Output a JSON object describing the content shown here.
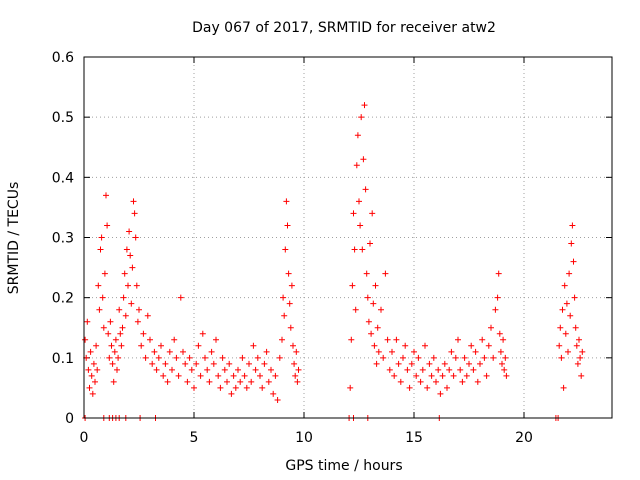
{
  "chart_data": {
    "type": "scatter",
    "title": "Day 067 of 2017, SRMTID for receiver atw2",
    "xlabel": "GPS time / hours",
    "ylabel": "SRMTID / TECUs",
    "xlim": [
      0,
      24
    ],
    "ylim": [
      0,
      0.6
    ],
    "xticks": [
      0,
      5,
      10,
      15,
      20
    ],
    "xtick_labels": [
      "0",
      "5",
      "10",
      "15",
      "20"
    ],
    "yticks": [
      0,
      0.1,
      0.2,
      0.3,
      0.4,
      0.5,
      0.6
    ],
    "ytick_labels": [
      "0",
      "0.1",
      "0.2",
      "0.3",
      "0.4",
      "0.5",
      "0.6"
    ],
    "grid": true,
    "marker": "+",
    "color": "#ff0000",
    "series": [
      {
        "name": "SRMTID",
        "points": [
          [
            0.05,
            0.13
          ],
          [
            0.1,
            0.1
          ],
          [
            0.15,
            0.16
          ],
          [
            0.2,
            0.08
          ],
          [
            0.25,
            0.05
          ],
          [
            0.3,
            0.11
          ],
          [
            0.35,
            0.07
          ],
          [
            0.4,
            0.04
          ],
          [
            0.45,
            0.09
          ],
          [
            0.5,
            0.06
          ],
          [
            0.55,
            0.12
          ],
          [
            0.6,
            0.08
          ],
          [
            0.65,
            0.22
          ],
          [
            0.7,
            0.18
          ],
          [
            0.75,
            0.28
          ],
          [
            0.8,
            0.3
          ],
          [
            0.85,
            0.2
          ],
          [
            0.9,
            0.15
          ],
          [
            0.95,
            0.24
          ],
          [
            1.0,
            0.37
          ],
          [
            1.05,
            0.32
          ],
          [
            1.1,
            0.14
          ],
          [
            1.15,
            0.1
          ],
          [
            1.2,
            0.16
          ],
          [
            1.25,
            0.12
          ],
          [
            1.3,
            0.09
          ],
          [
            1.35,
            0.06
          ],
          [
            1.4,
            0.11
          ],
          [
            1.45,
            0.13
          ],
          [
            1.5,
            0.08
          ],
          [
            1.55,
            0.1
          ],
          [
            1.6,
            0.18
          ],
          [
            1.65,
            0.14
          ],
          [
            1.7,
            0.12
          ],
          [
            1.75,
            0.15
          ],
          [
            1.8,
            0.2
          ],
          [
            1.85,
            0.24
          ],
          [
            1.9,
            0.17
          ],
          [
            1.95,
            0.28
          ],
          [
            2.0,
            0.22
          ],
          [
            2.05,
            0.31
          ],
          [
            2.1,
            0.27
          ],
          [
            2.15,
            0.19
          ],
          [
            2.2,
            0.25
          ],
          [
            2.25,
            0.36
          ],
          [
            2.3,
            0.34
          ],
          [
            2.35,
            0.3
          ],
          [
            2.4,
            0.22
          ],
          [
            2.45,
            0.16
          ],
          [
            2.5,
            0.18
          ],
          [
            2.6,
            0.12
          ],
          [
            2.7,
            0.14
          ],
          [
            2.8,
            0.1
          ],
          [
            2.9,
            0.17
          ],
          [
            3.0,
            0.13
          ],
          [
            3.1,
            0.09
          ],
          [
            3.2,
            0.11
          ],
          [
            3.3,
            0.08
          ],
          [
            3.4,
            0.1
          ],
          [
            3.5,
            0.12
          ],
          [
            3.6,
            0.07
          ],
          [
            3.7,
            0.09
          ],
          [
            3.8,
            0.06
          ],
          [
            3.9,
            0.11
          ],
          [
            4.0,
            0.08
          ],
          [
            4.1,
            0.13
          ],
          [
            4.2,
            0.1
          ],
          [
            4.3,
            0.07
          ],
          [
            4.4,
            0.2
          ],
          [
            4.5,
            0.11
          ],
          [
            4.6,
            0.09
          ],
          [
            4.7,
            0.06
          ],
          [
            4.8,
            0.1
          ],
          [
            4.9,
            0.08
          ],
          [
            5.0,
            0.05
          ],
          [
            5.1,
            0.09
          ],
          [
            5.2,
            0.12
          ],
          [
            5.3,
            0.07
          ],
          [
            5.4,
            0.14
          ],
          [
            5.5,
            0.1
          ],
          [
            5.6,
            0.08
          ],
          [
            5.7,
            0.06
          ],
          [
            5.8,
            0.11
          ],
          [
            5.9,
            0.09
          ],
          [
            6.0,
            0.13
          ],
          [
            6.1,
            0.07
          ],
          [
            6.2,
            0.05
          ],
          [
            6.3,
            0.1
          ],
          [
            6.4,
            0.08
          ],
          [
            6.5,
            0.06
          ],
          [
            6.6,
            0.09
          ],
          [
            6.7,
            0.04
          ],
          [
            6.8,
            0.07
          ],
          [
            6.9,
            0.05
          ],
          [
            7.0,
            0.08
          ],
          [
            7.1,
            0.06
          ],
          [
            7.2,
            0.1
          ],
          [
            7.3,
            0.07
          ],
          [
            7.4,
            0.05
          ],
          [
            7.5,
            0.09
          ],
          [
            7.6,
            0.06
          ],
          [
            7.7,
            0.12
          ],
          [
            7.8,
            0.08
          ],
          [
            7.9,
            0.1
          ],
          [
            8.0,
            0.07
          ],
          [
            8.1,
            0.05
          ],
          [
            8.2,
            0.09
          ],
          [
            8.3,
            0.11
          ],
          [
            8.4,
            0.06
          ],
          [
            8.5,
            0.08
          ],
          [
            8.6,
            0.04
          ],
          [
            8.7,
            0.07
          ],
          [
            8.8,
            0.03
          ],
          [
            8.9,
            0.1
          ],
          [
            9.0,
            0.13
          ],
          [
            9.05,
            0.2
          ],
          [
            9.1,
            0.17
          ],
          [
            9.15,
            0.28
          ],
          [
            9.2,
            0.36
          ],
          [
            9.25,
            0.32
          ],
          [
            9.3,
            0.24
          ],
          [
            9.35,
            0.19
          ],
          [
            9.4,
            0.15
          ],
          [
            9.45,
            0.22
          ],
          [
            9.5,
            0.12
          ],
          [
            9.55,
            0.09
          ],
          [
            9.6,
            0.07
          ],
          [
            9.65,
            0.11
          ],
          [
            9.7,
            0.06
          ],
          [
            9.75,
            0.08
          ],
          [
            12.1,
            0.05
          ],
          [
            12.15,
            0.13
          ],
          [
            12.2,
            0.22
          ],
          [
            12.25,
            0.34
          ],
          [
            12.3,
            0.28
          ],
          [
            12.35,
            0.18
          ],
          [
            12.4,
            0.42
          ],
          [
            12.45,
            0.47
          ],
          [
            12.5,
            0.36
          ],
          [
            12.55,
            0.32
          ],
          [
            12.6,
            0.5
          ],
          [
            12.65,
            0.28
          ],
          [
            12.7,
            0.43
          ],
          [
            12.75,
            0.52
          ],
          [
            12.8,
            0.38
          ],
          [
            12.85,
            0.24
          ],
          [
            12.9,
            0.2
          ],
          [
            12.95,
            0.16
          ],
          [
            13.0,
            0.29
          ],
          [
            13.05,
            0.14
          ],
          [
            13.1,
            0.34
          ],
          [
            13.15,
            0.19
          ],
          [
            13.2,
            0.12
          ],
          [
            13.25,
            0.22
          ],
          [
            13.3,
            0.09
          ],
          [
            13.35,
            0.15
          ],
          [
            13.4,
            0.11
          ],
          [
            13.5,
            0.18
          ],
          [
            13.6,
            0.1
          ],
          [
            13.7,
            0.24
          ],
          [
            13.8,
            0.13
          ],
          [
            13.9,
            0.08
          ],
          [
            14.0,
            0.11
          ],
          [
            14.1,
            0.07
          ],
          [
            14.2,
            0.13
          ],
          [
            14.3,
            0.09
          ],
          [
            14.4,
            0.06
          ],
          [
            14.5,
            0.1
          ],
          [
            14.6,
            0.12
          ],
          [
            14.7,
            0.08
          ],
          [
            14.8,
            0.05
          ],
          [
            14.9,
            0.09
          ],
          [
            15.0,
            0.11
          ],
          [
            15.1,
            0.07
          ],
          [
            15.2,
            0.1
          ],
          [
            15.3,
            0.06
          ],
          [
            15.4,
            0.08
          ],
          [
            15.5,
            0.12
          ],
          [
            15.6,
            0.05
          ],
          [
            15.7,
            0.09
          ],
          [
            15.8,
            0.07
          ],
          [
            15.9,
            0.1
          ],
          [
            16.0,
            0.06
          ],
          [
            16.1,
            0.08
          ],
          [
            16.2,
            0.04
          ],
          [
            16.3,
            0.07
          ],
          [
            16.4,
            0.09
          ],
          [
            16.5,
            0.05
          ],
          [
            16.6,
            0.08
          ],
          [
            16.7,
            0.11
          ],
          [
            16.8,
            0.07
          ],
          [
            16.9,
            0.1
          ],
          [
            17.0,
            0.13
          ],
          [
            17.1,
            0.08
          ],
          [
            17.2,
            0.06
          ],
          [
            17.3,
            0.1
          ],
          [
            17.4,
            0.07
          ],
          [
            17.5,
            0.09
          ],
          [
            17.6,
            0.12
          ],
          [
            17.7,
            0.08
          ],
          [
            17.8,
            0.11
          ],
          [
            17.9,
            0.06
          ],
          [
            18.0,
            0.09
          ],
          [
            18.1,
            0.13
          ],
          [
            18.2,
            0.1
          ],
          [
            18.3,
            0.07
          ],
          [
            18.4,
            0.12
          ],
          [
            18.5,
            0.15
          ],
          [
            18.6,
            0.1
          ],
          [
            18.7,
            0.18
          ],
          [
            18.8,
            0.2
          ],
          [
            18.85,
            0.24
          ],
          [
            18.9,
            0.14
          ],
          [
            18.95,
            0.11
          ],
          [
            19.0,
            0.09
          ],
          [
            19.05,
            0.13
          ],
          [
            19.1,
            0.08
          ],
          [
            19.15,
            0.1
          ],
          [
            19.2,
            0.07
          ],
          [
            21.6,
            0.12
          ],
          [
            21.65,
            0.15
          ],
          [
            21.7,
            0.1
          ],
          [
            21.75,
            0.18
          ],
          [
            21.8,
            0.05
          ],
          [
            21.85,
            0.22
          ],
          [
            21.9,
            0.14
          ],
          [
            21.95,
            0.19
          ],
          [
            22.0,
            0.11
          ],
          [
            22.05,
            0.24
          ],
          [
            22.1,
            0.17
          ],
          [
            22.15,
            0.29
          ],
          [
            22.2,
            0.32
          ],
          [
            22.25,
            0.26
          ],
          [
            22.3,
            0.2
          ],
          [
            22.35,
            0.15
          ],
          [
            22.4,
            0.12
          ],
          [
            22.45,
            0.09
          ],
          [
            22.5,
            0.13
          ],
          [
            22.55,
            0.1
          ],
          [
            22.6,
            0.07
          ],
          [
            22.65,
            0.11
          ]
        ]
      }
    ],
    "zero_markers": [
      0.05,
      0.9,
      1.15,
      1.3,
      1.45,
      1.6,
      1.9,
      2.55,
      3.25,
      12.05,
      12.25,
      12.9,
      16.15,
      21.45,
      21.55
    ]
  }
}
